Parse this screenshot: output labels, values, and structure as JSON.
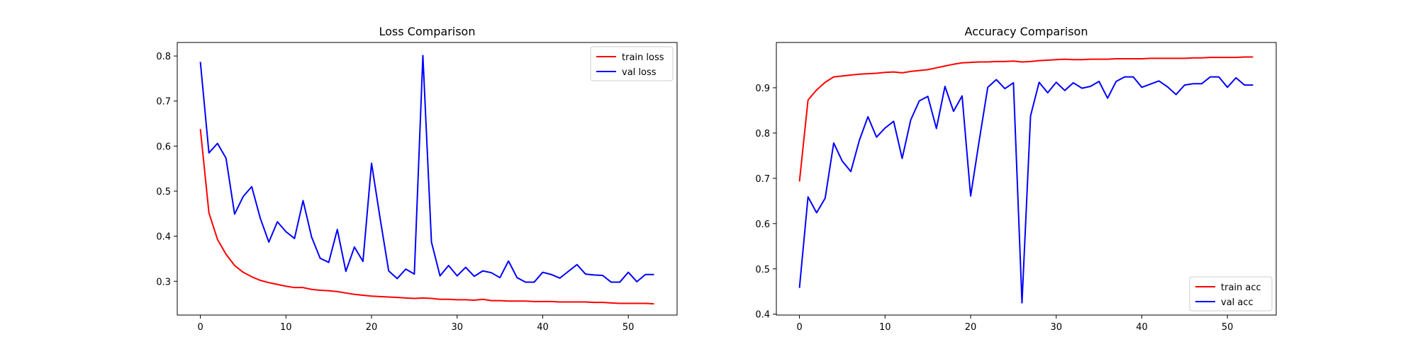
{
  "chart_data": [
    {
      "type": "line",
      "title": "Loss Comparison",
      "xlabel": "",
      "ylabel": "",
      "xlim": [
        -2.7,
        55.7
      ],
      "ylim": [
        0.225,
        0.83
      ],
      "xticks": [
        0,
        10,
        20,
        30,
        40,
        50
      ],
      "yticks": [
        0.3,
        0.4,
        0.5,
        0.6,
        0.7,
        0.8
      ],
      "grid": false,
      "legend_position": "top-right",
      "x": [
        0,
        1,
        2,
        3,
        4,
        5,
        6,
        7,
        8,
        9,
        10,
        11,
        12,
        13,
        14,
        15,
        16,
        17,
        18,
        19,
        20,
        21,
        22,
        23,
        24,
        25,
        26,
        27,
        28,
        29,
        30,
        31,
        32,
        33,
        34,
        35,
        36,
        37,
        38,
        39,
        40,
        41,
        42,
        43,
        44,
        45,
        46,
        47,
        48,
        49,
        50,
        51,
        52,
        53
      ],
      "series": [
        {
          "name": "train loss",
          "color": "#ff0000",
          "values": [
            0.638,
            0.452,
            0.393,
            0.36,
            0.335,
            0.32,
            0.31,
            0.302,
            0.297,
            0.293,
            0.289,
            0.286,
            0.286,
            0.282,
            0.28,
            0.279,
            0.277,
            0.274,
            0.271,
            0.269,
            0.267,
            0.266,
            0.265,
            0.264,
            0.263,
            0.262,
            0.263,
            0.262,
            0.26,
            0.26,
            0.259,
            0.259,
            0.258,
            0.26,
            0.257,
            0.257,
            0.256,
            0.256,
            0.256,
            0.255,
            0.255,
            0.255,
            0.254,
            0.254,
            0.254,
            0.254,
            0.253,
            0.253,
            0.252,
            0.251,
            0.251,
            0.251,
            0.251,
            0.25
          ]
        },
        {
          "name": "val loss",
          "color": "#0000ff",
          "values": [
            0.787,
            0.585,
            0.606,
            0.573,
            0.449,
            0.488,
            0.51,
            0.44,
            0.387,
            0.432,
            0.41,
            0.395,
            0.479,
            0.398,
            0.351,
            0.342,
            0.415,
            0.322,
            0.376,
            0.344,
            0.562,
            0.44,
            0.323,
            0.306,
            0.327,
            0.316,
            0.801,
            0.387,
            0.312,
            0.335,
            0.312,
            0.331,
            0.311,
            0.323,
            0.319,
            0.308,
            0.345,
            0.308,
            0.298,
            0.298,
            0.32,
            0.315,
            0.307,
            0.322,
            0.337,
            0.316,
            0.314,
            0.313,
            0.298,
            0.298,
            0.32,
            0.299,
            0.315,
            0.315
          ]
        }
      ]
    },
    {
      "type": "line",
      "title": "Accuracy Comparison",
      "xlabel": "",
      "ylabel": "",
      "xlim": [
        -2.7,
        55.7
      ],
      "ylim": [
        0.398,
        1.0
      ],
      "xticks": [
        0,
        10,
        20,
        30,
        40,
        50
      ],
      "yticks": [
        0.4,
        0.5,
        0.6,
        0.7,
        0.8,
        0.9
      ],
      "grid": false,
      "legend_position": "bottom-right",
      "x": [
        0,
        1,
        2,
        3,
        4,
        5,
        6,
        7,
        8,
        9,
        10,
        11,
        12,
        13,
        14,
        15,
        16,
        17,
        18,
        19,
        20,
        21,
        22,
        23,
        24,
        25,
        26,
        27,
        28,
        29,
        30,
        31,
        32,
        33,
        34,
        35,
        36,
        37,
        38,
        39,
        40,
        41,
        42,
        43,
        44,
        45,
        46,
        47,
        48,
        49,
        50,
        51,
        52,
        53
      ],
      "series": [
        {
          "name": "train acc",
          "color": "#ff0000",
          "values": [
            0.693,
            0.873,
            0.895,
            0.912,
            0.924,
            0.926,
            0.928,
            0.93,
            0.931,
            0.932,
            0.934,
            0.935,
            0.933,
            0.936,
            0.938,
            0.94,
            0.944,
            0.948,
            0.952,
            0.955,
            0.956,
            0.957,
            0.957,
            0.958,
            0.958,
            0.959,
            0.957,
            0.958,
            0.96,
            0.961,
            0.962,
            0.963,
            0.962,
            0.962,
            0.963,
            0.963,
            0.963,
            0.964,
            0.964,
            0.964,
            0.964,
            0.965,
            0.965,
            0.965,
            0.965,
            0.965,
            0.966,
            0.966,
            0.967,
            0.967,
            0.967,
            0.967,
            0.968,
            0.968
          ]
        },
        {
          "name": "val acc",
          "color": "#0000ff",
          "values": [
            0.458,
            0.659,
            0.624,
            0.656,
            0.778,
            0.738,
            0.715,
            0.784,
            0.836,
            0.791,
            0.811,
            0.826,
            0.744,
            0.829,
            0.871,
            0.881,
            0.81,
            0.903,
            0.848,
            0.882,
            0.661,
            0.783,
            0.901,
            0.918,
            0.898,
            0.911,
            0.425,
            0.838,
            0.912,
            0.889,
            0.912,
            0.894,
            0.911,
            0.899,
            0.903,
            0.914,
            0.877,
            0.914,
            0.924,
            0.924,
            0.901,
            0.908,
            0.915,
            0.902,
            0.885,
            0.906,
            0.909,
            0.909,
            0.924,
            0.924,
            0.901,
            0.922,
            0.906,
            0.906
          ]
        }
      ]
    }
  ]
}
